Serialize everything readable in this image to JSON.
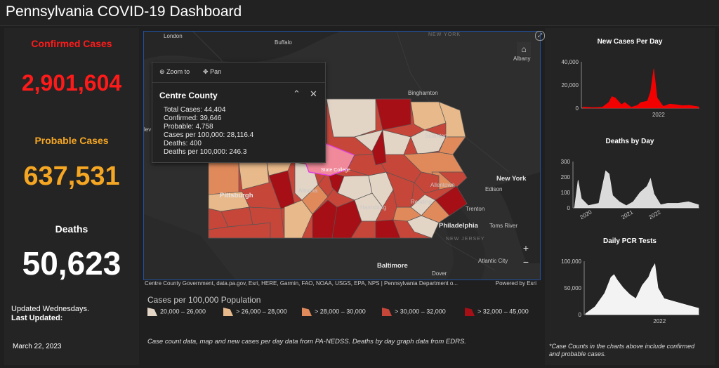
{
  "header": {
    "title": "Pennsylvania COVID-19 Dashboard"
  },
  "stats": {
    "confirmed_label": "Confirmed Cases",
    "confirmed_value": "2,901,604",
    "confirmed_color": "#ff1a1a",
    "probable_label": "Probable Cases",
    "probable_value": "637,531",
    "probable_color": "#f5a623",
    "deaths_label": "Deaths",
    "deaths_value": "50,623",
    "updated_text": "Updated Wednesdays.",
    "last_updated_label": "Last Updated:",
    "last_updated_date": "March 22, 2023"
  },
  "map": {
    "places": {
      "london": "London",
      "buffalo": "Buffalo",
      "new_york_state": "NEW YORK",
      "albany": "Albany",
      "binghamton": "Binghamton",
      "cleveland": "lev",
      "scranton": "Scranton",
      "state_college": "State College",
      "pittsburgh": "Pittsburgh",
      "altoona": "Altoona",
      "allentown": "Allentown",
      "new_york": "New York",
      "edison": "Edison",
      "harrisburg": "Harrisburg",
      "reading": "Reading",
      "trenton": "Trenton",
      "toms_river": "Toms River",
      "philadelphia": "Philadelphia",
      "new_jersey": "NEW JERSEY",
      "atlantic_city": "Atlantic City",
      "baltimore": "Baltimore",
      "dover": "Dover"
    },
    "attribution": "Centre County Government, data.pa.gov, Esri, HERE, Garmin, FAO, NOAA, USGS, EPA, NPS | Pennsylvania Department o...",
    "powered_by": "Powered by Esri",
    "zoom_in": "+",
    "zoom_out": "−",
    "home_icon": "home-icon",
    "popup": {
      "zoom_to": "Zoom to",
      "pan": "Pan",
      "county": "Centre County",
      "lines": [
        "Total Cases: 44,404",
        "Confirmed: 39,646",
        "Probable: 4,758",
        "Cases per 100,000: 28,116.4",
        "Deaths: 400",
        "Deaths per 100,000: 246.3"
      ]
    },
    "legend": {
      "title": "Cases per 100,000 Population",
      "items": [
        {
          "label": "20,000 – 26,000",
          "color": "#e3d5c6"
        },
        {
          "label": "> 26,000 – 28,000",
          "color": "#e8b98a"
        },
        {
          "label": "> 28,000 – 30,000",
          "color": "#e08a5c"
        },
        {
          "label": "> 30,000 – 32,000",
          "color": "#c6463a"
        },
        {
          "label": "> 32,000 – 45,000",
          "color": "#a50f15"
        }
      ]
    },
    "note": "Case count data, map and new cases per day data from PA-NEDSS.  Deaths by day graph data from EDRS."
  },
  "charts_note": "*Case Counts in the charts above include confirmed and probable cases.",
  "chart_data": [
    {
      "type": "area",
      "title": "New Cases Per Day",
      "color": "#ff0000",
      "ylim": [
        0,
        40000
      ],
      "yticks": [
        "40,000",
        "20,000",
        "0"
      ],
      "xticks": [
        "2022"
      ],
      "x": [
        "2020-03",
        "2020-06",
        "2020-09",
        "2020-11",
        "2020-12",
        "2021-01",
        "2021-03",
        "2021-04",
        "2021-06",
        "2021-08",
        "2021-09",
        "2021-11",
        "2021-12",
        "2022-01",
        "2022-02",
        "2022-04",
        "2022-06",
        "2022-08",
        "2022-10",
        "2022-12",
        "2023-03"
      ],
      "y": [
        1000,
        500,
        800,
        5000,
        10000,
        9000,
        3000,
        5000,
        700,
        2500,
        5000,
        6000,
        14000,
        34000,
        9000,
        1500,
        3500,
        3000,
        2200,
        2500,
        1200
      ]
    },
    {
      "type": "area",
      "title": "Deaths by Day",
      "color": "#e6e6e6",
      "ylim": [
        0,
        300
      ],
      "yticks": [
        "300",
        "200",
        "100",
        "0"
      ],
      "xticks": [
        "2020",
        "2021",
        "2022"
      ],
      "x": [
        "2020-03",
        "2020-04",
        "2020-05",
        "2020-07",
        "2020-10",
        "2020-12",
        "2021-01",
        "2021-02",
        "2021-04",
        "2021-06",
        "2021-08",
        "2021-10",
        "2021-12",
        "2022-01",
        "2022-02",
        "2022-04",
        "2022-06",
        "2022-09",
        "2022-12",
        "2023-03"
      ],
      "y": [
        5,
        180,
        60,
        15,
        30,
        240,
        220,
        80,
        40,
        15,
        40,
        100,
        140,
        190,
        90,
        20,
        30,
        30,
        40,
        20
      ]
    },
    {
      "type": "area",
      "title": "Daily PCR Tests",
      "color": "#ffffff",
      "ylim": [
        0,
        100000
      ],
      "yticks": [
        "100,000",
        "50,000",
        "0"
      ],
      "xticks": [
        "2022"
      ],
      "x": [
        "2020-03",
        "2020-06",
        "2020-09",
        "2020-11",
        "2020-12",
        "2021-01",
        "2021-03",
        "2021-05",
        "2021-07",
        "2021-09",
        "2021-11",
        "2021-12",
        "2022-01",
        "2022-02",
        "2022-04",
        "2022-07",
        "2022-10",
        "2023-01",
        "2023-03"
      ],
      "y": [
        2000,
        15000,
        40000,
        70000,
        75000,
        65000,
        50000,
        38000,
        30000,
        55000,
        70000,
        85000,
        95000,
        50000,
        30000,
        25000,
        20000,
        15000,
        12000
      ]
    }
  ]
}
